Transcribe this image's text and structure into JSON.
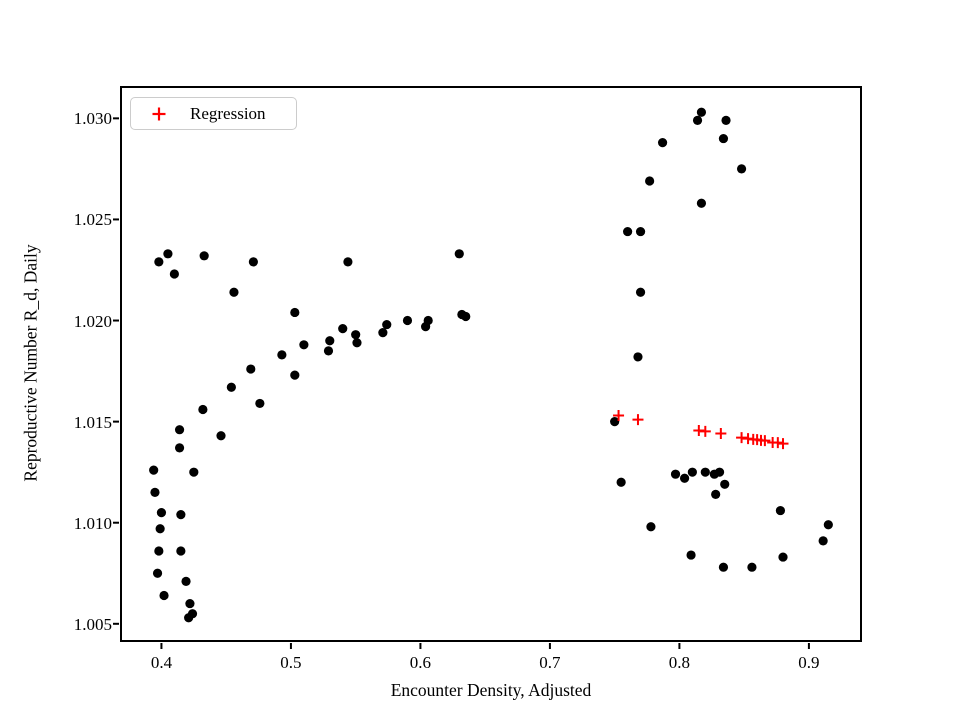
{
  "figure": {
    "background": "#ffffff",
    "frame_color": "#000000",
    "legend": {
      "label": "Regression",
      "marker": "plus-icon",
      "marker_color": "#ff0000"
    }
  },
  "chart_data": {
    "type": "scatter",
    "title": "",
    "xlabel": "Encounter Density, Adjusted",
    "ylabel": "Reproductive Number R_d, Daily",
    "xlim": [
      0.368,
      0.941
    ],
    "ylim": [
      1.0041,
      1.0316
    ],
    "x_ticks": [
      0.4,
      0.5,
      0.6,
      0.7,
      0.8,
      0.9
    ],
    "x_tick_labels": [
      "0.4",
      "0.5",
      "0.6",
      "0.7",
      "0.8",
      "0.9"
    ],
    "y_ticks": [
      1.005,
      1.01,
      1.015,
      1.02,
      1.025,
      1.03
    ],
    "y_tick_labels": [
      "1.005",
      "1.010",
      "1.015",
      "1.020",
      "1.025",
      "1.030"
    ],
    "grid": false,
    "legend_position": "upper left",
    "legend_entries": [
      "Regression"
    ],
    "series": [
      {
        "name": "observations",
        "marker": "circle",
        "color": "#000000",
        "in_legend": false,
        "points": [
          [
            0.398,
            1.0229
          ],
          [
            0.405,
            1.0233
          ],
          [
            0.41,
            1.0223
          ],
          [
            0.433,
            1.0232
          ],
          [
            0.471,
            1.0229
          ],
          [
            0.456,
            1.0214
          ],
          [
            0.544,
            1.0229
          ],
          [
            0.63,
            1.0233
          ],
          [
            0.503,
            1.0204
          ],
          [
            0.54,
            1.0196
          ],
          [
            0.55,
            1.0193
          ],
          [
            0.551,
            1.0189
          ],
          [
            0.53,
            1.019
          ],
          [
            0.529,
            1.0185
          ],
          [
            0.51,
            1.0188
          ],
          [
            0.493,
            1.0183
          ],
          [
            0.469,
            1.0176
          ],
          [
            0.503,
            1.0173
          ],
          [
            0.571,
            1.0194
          ],
          [
            0.574,
            1.0198
          ],
          [
            0.59,
            1.02
          ],
          [
            0.604,
            1.0197
          ],
          [
            0.606,
            1.02
          ],
          [
            0.632,
            1.0203
          ],
          [
            0.635,
            1.0202
          ],
          [
            0.454,
            1.0167
          ],
          [
            0.476,
            1.0159
          ],
          [
            0.432,
            1.0156
          ],
          [
            0.414,
            1.0146
          ],
          [
            0.446,
            1.0143
          ],
          [
            0.414,
            1.0137
          ],
          [
            0.394,
            1.0126
          ],
          [
            0.425,
            1.0125
          ],
          [
            0.395,
            1.0115
          ],
          [
            0.4,
            1.0105
          ],
          [
            0.415,
            1.0104
          ],
          [
            0.399,
            1.0097
          ],
          [
            0.398,
            1.0086
          ],
          [
            0.415,
            1.0086
          ],
          [
            0.397,
            1.0075
          ],
          [
            0.419,
            1.0071
          ],
          [
            0.402,
            1.0064
          ],
          [
            0.422,
            1.006
          ],
          [
            0.424,
            1.0055
          ],
          [
            0.421,
            1.0053
          ],
          [
            0.76,
            1.0244
          ],
          [
            0.77,
            1.0244
          ],
          [
            0.77,
            1.0214
          ],
          [
            0.768,
            1.0182
          ],
          [
            0.75,
            1.015
          ],
          [
            0.755,
            1.012
          ],
          [
            0.777,
            1.0269
          ],
          [
            0.787,
            1.0288
          ],
          [
            0.814,
            1.0299
          ],
          [
            0.817,
            1.0303
          ],
          [
            0.836,
            1.0299
          ],
          [
            0.834,
            1.029
          ],
          [
            0.848,
            1.0275
          ],
          [
            0.817,
            1.0258
          ],
          [
            0.797,
            1.0124
          ],
          [
            0.804,
            1.0122
          ],
          [
            0.81,
            1.0125
          ],
          [
            0.82,
            1.0125
          ],
          [
            0.827,
            1.0124
          ],
          [
            0.831,
            1.0125
          ],
          [
            0.835,
            1.0119
          ],
          [
            0.828,
            1.0114
          ],
          [
            0.778,
            1.0098
          ],
          [
            0.809,
            1.0084
          ],
          [
            0.834,
            1.0078
          ],
          [
            0.856,
            1.0078
          ],
          [
            0.88,
            1.0083
          ],
          [
            0.878,
            1.0106
          ],
          [
            0.911,
            1.0091
          ],
          [
            0.915,
            1.0099
          ]
        ]
      },
      {
        "name": "Regression",
        "marker": "plus",
        "color": "#ff0000",
        "in_legend": true,
        "points": [
          [
            0.753,
            1.0153
          ],
          [
            0.768,
            1.0151
          ],
          [
            0.815,
            1.01456
          ],
          [
            0.82,
            1.01452
          ],
          [
            0.832,
            1.01441
          ],
          [
            0.848,
            1.01421
          ],
          [
            0.853,
            1.01416
          ],
          [
            0.857,
            1.01412
          ],
          [
            0.86,
            1.01411
          ],
          [
            0.863,
            1.01407
          ],
          [
            0.866,
            1.01406
          ],
          [
            0.872,
            1.01397
          ],
          [
            0.876,
            1.01396
          ],
          [
            0.88,
            1.01391
          ]
        ]
      }
    ]
  }
}
